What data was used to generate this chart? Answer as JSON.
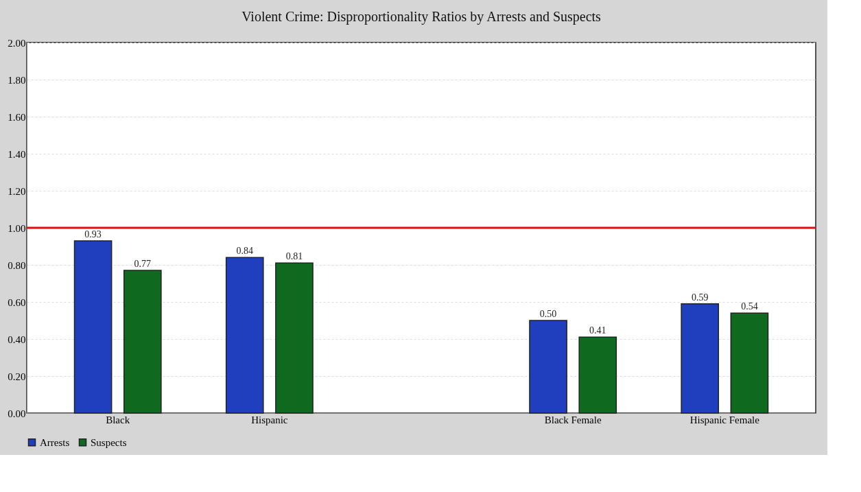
{
  "chart_data": {
    "type": "bar",
    "title": "Violent Crime: Disproportionality Ratios by Arrests and Suspects",
    "categories": [
      "Black",
      "Hispanic",
      null,
      "Black Female",
      "Hispanic Female"
    ],
    "series": [
      {
        "name": "Arrests",
        "color": "#1f3fbf",
        "values": [
          0.93,
          0.84,
          null,
          0.5,
          0.59
        ],
        "value_labels": [
          "0.93",
          "0.84",
          null,
          "0.50",
          "0.59"
        ]
      },
      {
        "name": "Suspects",
        "color": "#0f6a1f",
        "values": [
          0.77,
          0.81,
          null,
          0.41,
          0.54
        ],
        "value_labels": [
          "0.77",
          "0.81",
          null,
          "0.41",
          "0.54"
        ]
      }
    ],
    "ylim": [
      0,
      2
    ],
    "yticks": [
      {
        "value": 0,
        "label": "0.00"
      },
      {
        "value": 0.2,
        "label": "0.20"
      },
      {
        "value": 0.4,
        "label": "0.40"
      },
      {
        "value": 0.6,
        "label": "0.60"
      },
      {
        "value": 0.8,
        "label": "0.80"
      },
      {
        "value": 1,
        "label": "1.00"
      },
      {
        "value": 1.2,
        "label": "1.20"
      },
      {
        "value": 1.4,
        "label": "1.40"
      },
      {
        "value": 1.6,
        "label": "1.60"
      },
      {
        "value": 1.8,
        "label": "1.80"
      },
      {
        "value": 2,
        "label": "2.00"
      }
    ],
    "ref_lines": [
      {
        "axis": "y",
        "value": 1,
        "label": null,
        "color": "#e01010"
      }
    ],
    "grid": "y",
    "legend": "bottom"
  }
}
